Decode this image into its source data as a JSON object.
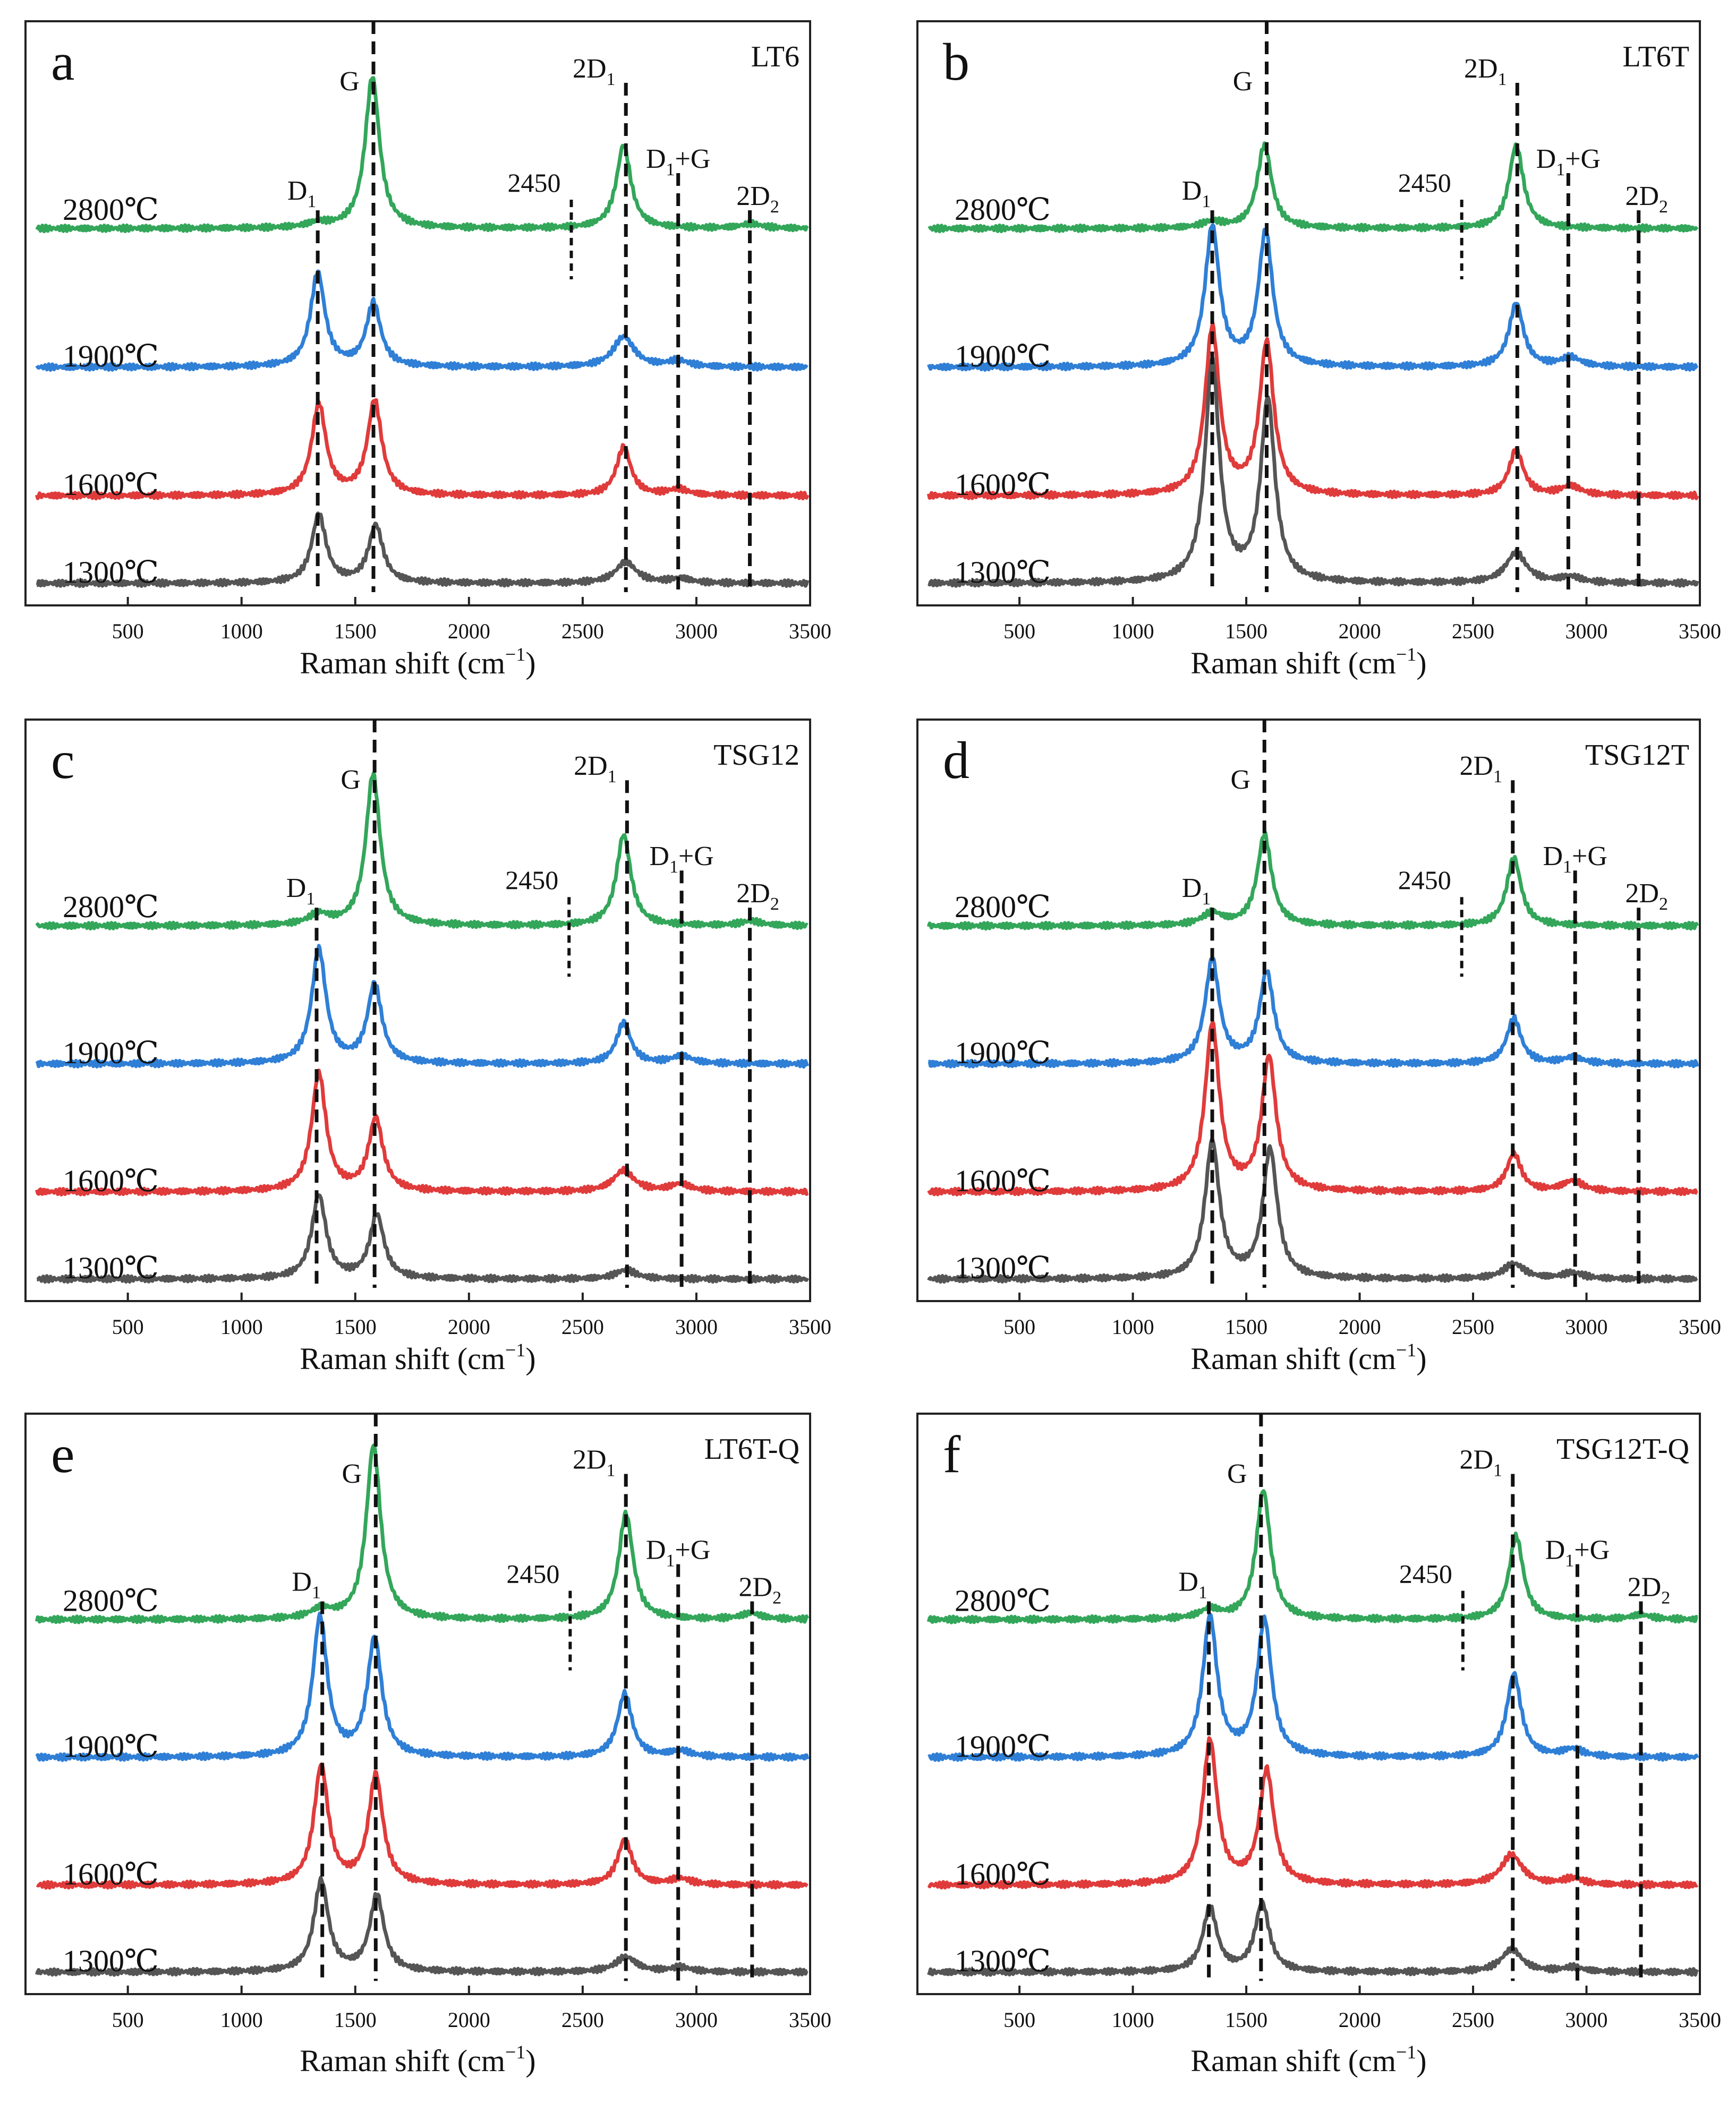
{
  "figure": {
    "x_unit_label": "Raman shift (cm",
    "x_unit_sup": "−1",
    "x_unit_close": ")",
    "x_range": [
      50,
      3500
    ],
    "x_ticks": [
      500,
      1000,
      1500,
      2000,
      2500,
      3000,
      3500
    ],
    "series_colors": {
      "2800": "#33a65a",
      "1900": "#2f7fd6",
      "1600": "#e03b3b",
      "1300": "#555555"
    },
    "temperatures": [
      "2800℃",
      "1900℃",
      "1600℃",
      "1300℃"
    ]
  },
  "chart_data": [
    {
      "type": "line",
      "panel": "a",
      "sample": "LT6",
      "xlabel": "Raman shift (cm−1)",
      "xlim": [
        50,
        3500
      ],
      "series": [
        {
          "name": "2800℃",
          "peaks": {
            "D1": [
              1335,
              0.03
            ],
            "G": [
              1575,
              1.0
            ],
            "2D1": [
              2680,
              0.55
            ],
            "2D2": [
              3240,
              0.03
            ]
          }
        },
        {
          "name": "1900℃",
          "peaks": {
            "D1": [
              1335,
              0.62
            ],
            "G": [
              1580,
              0.42
            ],
            "2D1": [
              2680,
              0.2
            ],
            "D1+G": [
              2920,
              0.04
            ]
          }
        },
        {
          "name": "1600℃",
          "peaks": {
            "D1": [
              1340,
              0.6
            ],
            "G": [
              1585,
              0.62
            ],
            "2D1": [
              2680,
              0.32
            ],
            "D1+G": [
              2920,
              0.04
            ]
          }
        },
        {
          "name": "1300℃",
          "peaks": {
            "D1": [
              1340,
              0.45
            ],
            "G": [
              1590,
              0.38
            ],
            "2D1": [
              2690,
              0.14
            ],
            "D1+G": [
              2930,
              0.03
            ]
          }
        }
      ],
      "markers": {
        "D1": 1335,
        "G": 1580,
        "2450": 2450,
        "2D1": 2690,
        "D1+G": 2920,
        "2D2": 3235
      },
      "labels": {
        "D1": "D",
        "D1_sub": "1",
        "G": "G",
        "m2450": "2450",
        "2D1": "2D",
        "2D1_sub": "1",
        "D1G": "D",
        "D1G_sub": "1",
        "D1G_tail": "+G",
        "2D2": "2D",
        "2D2_sub": "2"
      }
    },
    {
      "type": "line",
      "panel": "b",
      "sample": "LT6T",
      "xlabel": "Raman shift (cm−1)",
      "xlim": [
        50,
        3500
      ],
      "series": [
        {
          "name": "2800℃",
          "peaks": {
            "D1": [
              1350,
              0.04
            ],
            "G": [
              1580,
              0.55
            ],
            "2D1": [
              2690,
              0.55
            ]
          }
        },
        {
          "name": "1900℃",
          "peaks": {
            "D1": [
              1350,
              0.92
            ],
            "G": [
              1585,
              0.88
            ],
            "2D1": [
              2690,
              0.42
            ],
            "D1+G": [
              2930,
              0.06
            ]
          }
        },
        {
          "name": "1600℃",
          "peaks": {
            "D1": [
              1350,
              1.1
            ],
            "G": [
              1590,
              1.0
            ],
            "2D1": [
              2690,
              0.3
            ],
            "D1+G": [
              2930,
              0.06
            ]
          }
        },
        {
          "name": "1300℃",
          "peaks": {
            "D1": [
              1350,
              1.45
            ],
            "G": [
              1595,
              1.2
            ],
            "2D1": [
              2690,
              0.2
            ],
            "D1+G": [
              2930,
              0.04
            ]
          }
        }
      ],
      "markers": {
        "D1": 1350,
        "G": 1590,
        "2450": 2450,
        "2D1": 2695,
        "D1+G": 2920,
        "2D2": 3230
      },
      "labels": {
        "D1": "D",
        "D1_sub": "1",
        "G": "G",
        "m2450": "2450",
        "2D1": "2D",
        "2D1_sub": "1",
        "D1G": "D",
        "D1G_sub": "1",
        "D1G_tail": "+G",
        "2D2": "2D",
        "2D2_sub": "2"
      }
    },
    {
      "type": "line",
      "panel": "c",
      "sample": "TSG12",
      "xlabel": "Raman shift (cm−1)",
      "xlim": [
        50,
        3500
      ],
      "series": [
        {
          "name": "2800℃",
          "peaks": {
            "D1": [
              1340,
              0.07
            ],
            "G": [
              1578,
              1.0
            ],
            "2D1": [
              2680,
              0.6
            ],
            "2D2": [
              3240,
              0.03
            ]
          }
        },
        {
          "name": "1900℃",
          "peaks": {
            "D1": [
              1340,
              0.75
            ],
            "G": [
              1585,
              0.52
            ],
            "2D1": [
              2680,
              0.27
            ],
            "D1+G": [
              2935,
              0.05
            ]
          }
        },
        {
          "name": "1600℃",
          "peaks": {
            "D1": [
              1340,
              0.78
            ],
            "G": [
              1590,
              0.48
            ],
            "2D1": [
              2680,
              0.14
            ],
            "D1+G": [
              2930,
              0.05
            ]
          }
        },
        {
          "name": "1300℃",
          "peaks": {
            "D1": [
              1340,
              0.55
            ],
            "G": [
              1595,
              0.42
            ],
            "2D1": [
              2690,
              0.06
            ]
          }
        }
      ],
      "markers": {
        "D1": 1330,
        "G": 1585,
        "2450": 2440,
        "2D1": 2695,
        "D1+G": 2935,
        "2D2": 3235
      },
      "labels": {
        "D1": "D",
        "D1_sub": "1",
        "G": "G",
        "m2450": "2450",
        "2D1": "2D",
        "2D1_sub": "1",
        "D1G": "D",
        "D1G_sub": "1",
        "D1G_tail": "+G",
        "2D2": "2D",
        "2D2_sub": "2"
      }
    },
    {
      "type": "line",
      "panel": "d",
      "sample": "TSG12T",
      "xlabel": "Raman shift (cm−1)",
      "xlim": [
        50,
        3500
      ],
      "series": [
        {
          "name": "2800℃",
          "peaks": {
            "D1": [
              1350,
              0.08
            ],
            "G": [
              1580,
              0.6
            ],
            "2D1": [
              2680,
              0.45
            ]
          }
        },
        {
          "name": "1900℃",
          "peaks": {
            "D1": [
              1350,
              0.68
            ],
            "G": [
              1590,
              0.6
            ],
            "2D1": [
              2680,
              0.3
            ],
            "D1+G": [
              2940,
              0.04
            ]
          }
        },
        {
          "name": "1600℃",
          "peaks": {
            "D1": [
              1350,
              1.1
            ],
            "G": [
              1600,
              0.88
            ],
            "2D1": [
              2680,
              0.25
            ],
            "D1+G": [
              2940,
              0.07
            ]
          }
        },
        {
          "name": "1300℃",
          "peaks": {
            "D1": [
              1350,
              0.9
            ],
            "G": [
              1605,
              0.85
            ],
            "2D1": [
              2680,
              0.1
            ],
            "D1+G": [
              2940,
              0.04
            ]
          }
        }
      ],
      "markers": {
        "D1": 1350,
        "G": 1580,
        "2450": 2450,
        "2D1": 2675,
        "D1+G": 2950,
        "2D2": 3230
      },
      "labels": {
        "D1": "D",
        "D1_sub": "1",
        "G": "G",
        "m2450": "2450",
        "2D1": "2D",
        "2D1_sub": "1",
        "D1G": "D",
        "D1G_sub": "1",
        "D1G_tail": "+G",
        "2D2": "2D",
        "2D2_sub": "2"
      }
    },
    {
      "type": "line",
      "panel": "e",
      "sample": "LT6T-Q",
      "xlabel": "Raman shift (cm−1)",
      "xlim": [
        50,
        3500
      ],
      "series": [
        {
          "name": "2800℃",
          "peaks": {
            "D1": [
              1350,
              0.06
            ],
            "G": [
              1580,
              1.15
            ],
            "2D1": [
              2690,
              0.7
            ],
            "2D2": [
              3240,
              0.04
            ]
          }
        },
        {
          "name": "1900℃",
          "peaks": {
            "D1": [
              1345,
              0.92
            ],
            "G": [
              1585,
              0.78
            ],
            "2D1": [
              2685,
              0.42
            ],
            "D1+G": [
              2930,
              0.04
            ]
          }
        },
        {
          "name": "1600℃",
          "peaks": {
            "D1": [
              1350,
              0.78
            ],
            "G": [
              1590,
              0.72
            ],
            "2D1": [
              2685,
              0.3
            ],
            "D1+G": [
              2930,
              0.04
            ]
          }
        },
        {
          "name": "1300℃",
          "peaks": {
            "D1": [
              1350,
              0.6
            ],
            "G": [
              1595,
              0.5
            ],
            "2D1": [
              2690,
              0.1
            ],
            "D1+G": [
              2930,
              0.03
            ]
          }
        }
      ],
      "markers": {
        "D1": 1355,
        "G": 1590,
        "2450": 2445,
        "2D1": 2690,
        "D1+G": 2920,
        "2D2": 3245
      },
      "labels": {
        "D1": "D",
        "D1_sub": "1",
        "G": "G",
        "m2450": "2450",
        "2D1": "2D",
        "2D1_sub": "1",
        "D1G": "D",
        "D1G_sub": "1",
        "D1G_tail": "+G",
        "2D2": "2D",
        "2D2_sub": "2"
      }
    },
    {
      "type": "line",
      "panel": "f",
      "sample": "TSG12T-Q",
      "xlabel": "Raman shift (cm−1)",
      "xlim": [
        50,
        3500
      ],
      "series": [
        {
          "name": "2800℃",
          "peaks": {
            "D1": [
              1340,
              0.06
            ],
            "G": [
              1575,
              0.85
            ],
            "2D1": [
              2690,
              0.55
            ],
            "2D2": [
              3240,
              0.03
            ]
          }
        },
        {
          "name": "1900℃",
          "peaks": {
            "D1": [
              1340,
              0.92
            ],
            "G": [
              1580,
              0.9
            ],
            "2D1": [
              2680,
              0.55
            ],
            "D1+G": [
              2940,
              0.05
            ]
          }
        },
        {
          "name": "1600℃",
          "peaks": {
            "D1": [
              1340,
              0.95
            ],
            "G": [
              1590,
              0.75
            ],
            "2D1": [
              2670,
              0.2
            ],
            "D1+G": [
              2940,
              0.04
            ]
          }
        },
        {
          "name": "1300℃",
          "peaks": {
            "D1": [
              1340,
              0.42
            ],
            "G": [
              1570,
              0.45
            ],
            "2D1": [
              2670,
              0.15
            ],
            "D1+G": [
              2940,
              0.03
            ]
          }
        }
      ],
      "markers": {
        "D1": 1335,
        "G": 1565,
        "2450": 2455,
        "2D1": 2675,
        "D1+G": 2960,
        "2D2": 3240
      },
      "labels": {
        "D1": "D",
        "D1_sub": "1",
        "G": "G",
        "m2450": "2450",
        "2D1": "2D",
        "2D1_sub": "1",
        "D1G": "D",
        "D1G_sub": "1",
        "D1G_tail": "+G",
        "2D2": "2D",
        "2D2_sub": "2"
      }
    }
  ]
}
